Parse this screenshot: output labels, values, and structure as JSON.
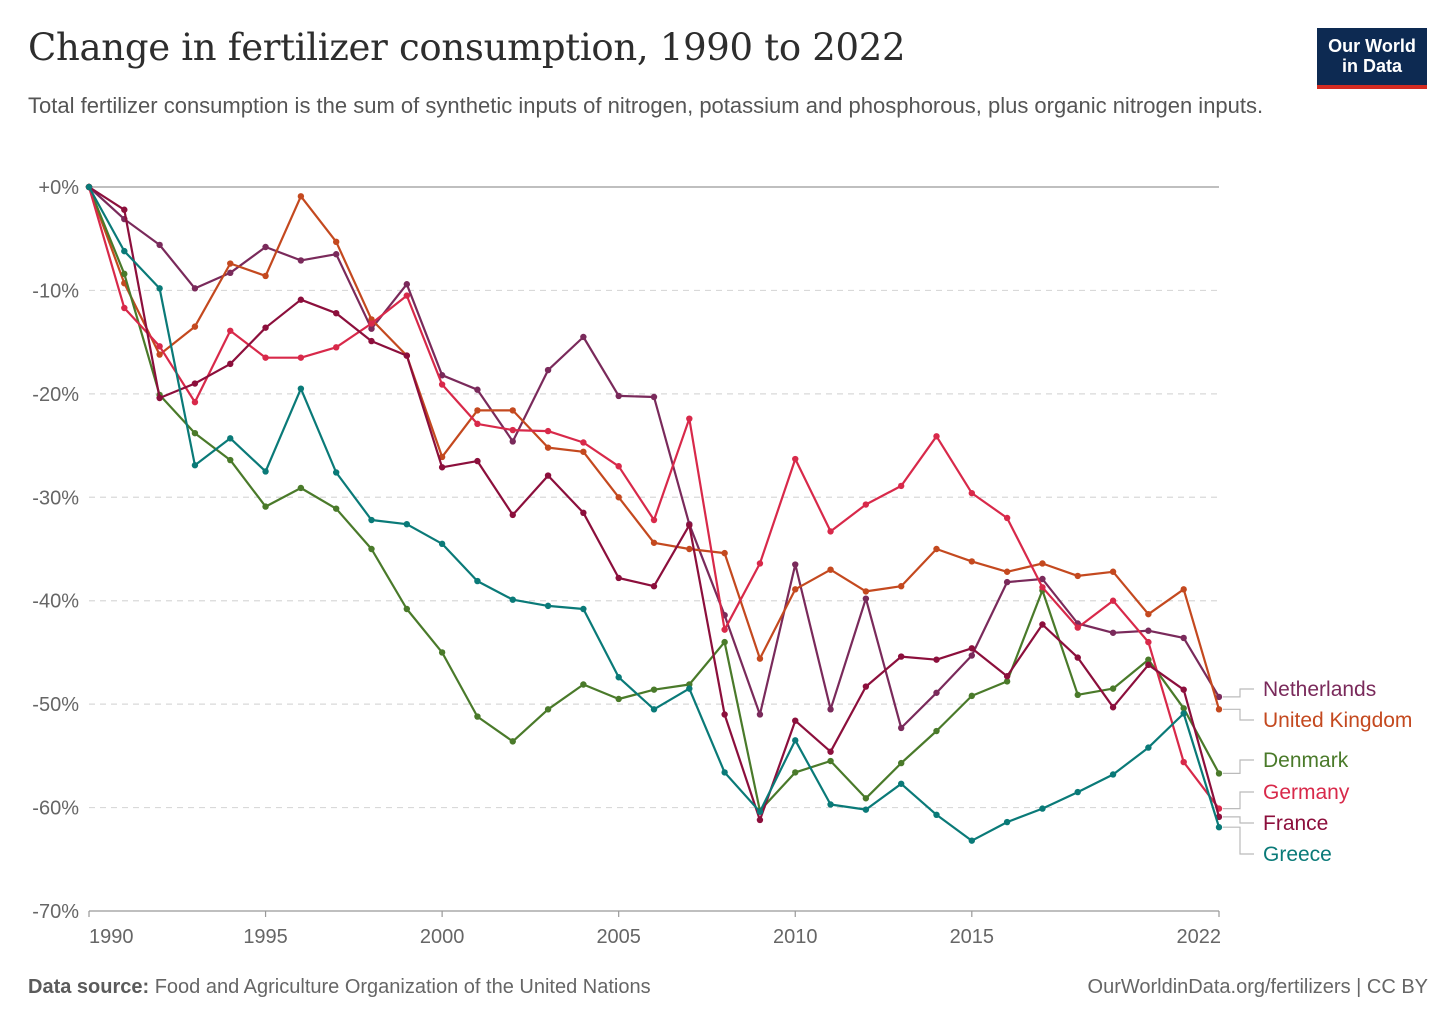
{
  "header": {
    "title": "Change in fertilizer consumption, 1990 to 2022",
    "subtitle": "Total fertilizer consumption is the sum of synthetic inputs of nitrogen, potassium and phosphorous, plus organic nitrogen inputs.",
    "logo_line1": "Our World",
    "logo_line2": "in Data"
  },
  "footer": {
    "source_label": "Data source:",
    "source_text": "Food and Agriculture Organization of the United Nations",
    "credit": "OurWorldinData.org/fertilizers | CC BY"
  },
  "colors": {
    "Netherlands": "#7a2a5b",
    "United Kingdom": "#c4491f",
    "Denmark": "#4a7a2a",
    "Germany": "#d8294a",
    "France": "#8c0f3c",
    "Greece": "#0a7a78"
  },
  "chart_data": {
    "type": "line",
    "title": "Change in fertilizer consumption, 1990 to 2022",
    "x_ticks": [
      1990,
      1995,
      2000,
      2005,
      2010,
      2015,
      2022
    ],
    "y_ticks": [
      0,
      -10,
      -20,
      -30,
      -40,
      -50,
      -60,
      -70
    ],
    "y_tick_labels": [
      "+0%",
      "-10%",
      "-20%",
      "-30%",
      "-40%",
      "-50%",
      "-60%",
      "-70%"
    ],
    "xlim": [
      1990,
      2022
    ],
    "ylim": [
      -70,
      0
    ],
    "grid": "horizontal dashed",
    "legend": "right, labels at line ends",
    "series": [
      {
        "name": "Netherlands",
        "x": [
          1990,
          1991,
          1992,
          1993,
          1994,
          1995,
          1996,
          1997,
          1998,
          1999,
          2000,
          2001,
          2002,
          2003,
          2004,
          2005,
          2006,
          2007,
          2008,
          2009,
          2010,
          2011,
          2012,
          2013,
          2014,
          2015,
          2016,
          2017,
          2018,
          2019,
          2020,
          2021,
          2022
        ],
        "values": [
          0,
          -3.1,
          -5.6,
          -9.8,
          -8.3,
          -5.8,
          -7.1,
          -6.5,
          -13.7,
          -9.4,
          -18.2,
          -19.6,
          -24.6,
          -17.7,
          -14.5,
          -20.2,
          -20.3,
          -32.6,
          -41.4,
          -51.0,
          -36.5,
          -50.5,
          -39.8,
          -52.3,
          -48.9,
          -45.3,
          -38.2,
          -37.9,
          -42.2,
          -43.1,
          -42.9,
          -43.6,
          -49.3
        ]
      },
      {
        "name": "United Kingdom",
        "x": [
          1990,
          1991,
          1992,
          1993,
          1994,
          1995,
          1996,
          1997,
          1998,
          1999,
          2000,
          2001,
          2002,
          2003,
          2004,
          2005,
          2006,
          2007,
          2008,
          2009,
          2010,
          2011,
          2012,
          2013,
          2014,
          2015,
          2016,
          2017,
          2018,
          2019,
          2020,
          2021,
          2022
        ],
        "values": [
          0,
          -9.3,
          -16.2,
          -13.5,
          -7.4,
          -8.6,
          -0.9,
          -5.3,
          -12.8,
          -16.3,
          -26.1,
          -21.6,
          -21.6,
          -25.2,
          -25.6,
          -30.0,
          -34.4,
          -35.0,
          -35.4,
          -45.6,
          -38.9,
          -37.0,
          -39.1,
          -38.6,
          -35.0,
          -36.2,
          -37.2,
          -36.4,
          -37.6,
          -37.2,
          -41.3,
          -38.9,
          -50.5
        ]
      },
      {
        "name": "Denmark",
        "x": [
          1990,
          1991,
          1992,
          1993,
          1994,
          1995,
          1996,
          1997,
          1998,
          1999,
          2000,
          2001,
          2002,
          2003,
          2004,
          2005,
          2006,
          2007,
          2008,
          2009,
          2010,
          2011,
          2012,
          2013,
          2014,
          2015,
          2016,
          2017,
          2018,
          2019,
          2020,
          2021,
          2022
        ],
        "values": [
          0,
          -8.4,
          -20.1,
          -23.8,
          -26.4,
          -30.9,
          -29.1,
          -31.1,
          -35.0,
          -40.8,
          -45.0,
          -51.2,
          -53.6,
          -50.5,
          -48.1,
          -49.5,
          -48.6,
          -48.1,
          -44.0,
          -60.3,
          -56.6,
          -55.5,
          -59.1,
          -55.7,
          -52.6,
          -49.2,
          -47.8,
          -39.0,
          -49.1,
          -48.5,
          -45.7,
          -50.4,
          -56.7
        ]
      },
      {
        "name": "Germany",
        "x": [
          1990,
          1991,
          1992,
          1993,
          1994,
          1995,
          1996,
          1997,
          1998,
          1999,
          2000,
          2001,
          2002,
          2003,
          2004,
          2005,
          2006,
          2007,
          2008,
          2009,
          2010,
          2011,
          2012,
          2013,
          2014,
          2015,
          2016,
          2017,
          2018,
          2019,
          2020,
          2021,
          2022
        ],
        "values": [
          0,
          -11.7,
          -15.4,
          -20.8,
          -13.9,
          -16.5,
          -16.5,
          -15.5,
          -13.2,
          -10.5,
          -19.1,
          -22.9,
          -23.5,
          -23.6,
          -24.7,
          -27.0,
          -32.2,
          -22.4,
          -42.8,
          -36.4,
          -26.3,
          -33.3,
          -30.7,
          -28.9,
          -24.1,
          -29.6,
          -32.0,
          -38.7,
          -42.6,
          -40.0,
          -44.0,
          -55.6,
          -60.1
        ]
      },
      {
        "name": "France",
        "x": [
          1990,
          1991,
          1992,
          1993,
          1994,
          1995,
          1996,
          1997,
          1998,
          1999,
          2000,
          2001,
          2002,
          2003,
          2004,
          2005,
          2006,
          2007,
          2008,
          2009,
          2010,
          2011,
          2012,
          2013,
          2014,
          2015,
          2016,
          2017,
          2018,
          2019,
          2020,
          2021,
          2022
        ],
        "values": [
          0,
          -2.2,
          -20.4,
          -19.0,
          -17.1,
          -13.6,
          -10.9,
          -12.2,
          -14.9,
          -16.3,
          -27.1,
          -26.5,
          -31.7,
          -27.9,
          -31.5,
          -37.8,
          -38.6,
          -32.7,
          -51.0,
          -61.2,
          -51.6,
          -54.6,
          -48.3,
          -45.4,
          -45.7,
          -44.6,
          -47.3,
          -42.3,
          -45.5,
          -50.3,
          -46.2,
          -48.6,
          -60.9
        ]
      },
      {
        "name": "Greece",
        "x": [
          1990,
          1991,
          1992,
          1993,
          1994,
          1995,
          1996,
          1997,
          1998,
          1999,
          2000,
          2001,
          2002,
          2003,
          2004,
          2005,
          2006,
          2007,
          2008,
          2009,
          2010,
          2011,
          2012,
          2013,
          2014,
          2015,
          2016,
          2017,
          2018,
          2019,
          2020,
          2021,
          2022
        ],
        "values": [
          0,
          -6.2,
          -9.8,
          -26.9,
          -24.3,
          -27.5,
          -19.5,
          -27.6,
          -32.2,
          -32.6,
          -34.5,
          -38.1,
          -39.9,
          -40.5,
          -40.8,
          -47.4,
          -50.5,
          -48.5,
          -56.6,
          -60.4,
          -53.5,
          -59.7,
          -60.2,
          -57.7,
          -60.7,
          -63.2,
          -61.4,
          -60.1,
          -58.5,
          -56.8,
          -54.2,
          -50.9,
          -61.9
        ]
      }
    ]
  }
}
